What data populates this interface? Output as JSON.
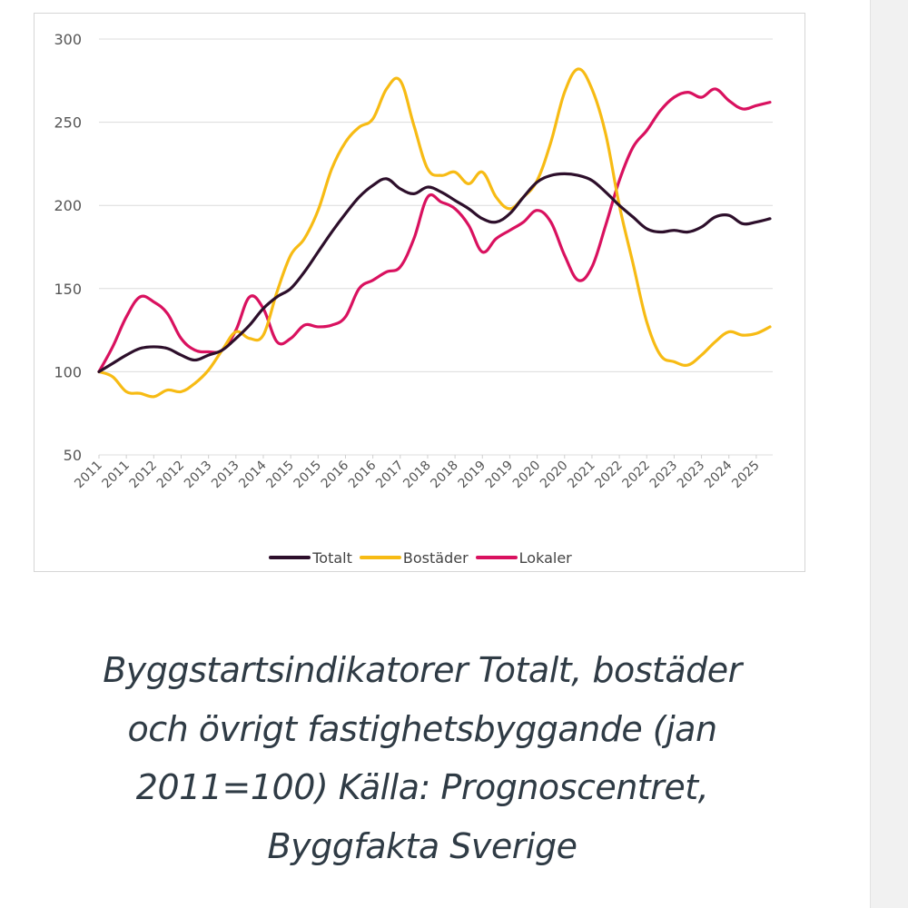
{
  "chart_data": {
    "type": "line",
    "title": "",
    "xlabel": "",
    "ylabel": "",
    "ylim": [
      50,
      300
    ],
    "y_ticks": [
      "300",
      "250",
      "200",
      "150",
      "100",
      "50"
    ],
    "x_tick_labels": [
      "2011",
      "2011",
      "2012",
      "2012",
      "2013",
      "2013",
      "2014",
      "2015",
      "2015",
      "2016",
      "2016",
      "2017",
      "2018",
      "2018",
      "2019",
      "2019",
      "2020",
      "2020",
      "2021",
      "2022",
      "2022",
      "2023",
      "2023",
      "2024",
      "2025"
    ],
    "x_range": [
      0,
      24.6
    ],
    "grid": "horizontal",
    "legend_position": "bottom",
    "series": [
      {
        "name": "Totalt",
        "color": "#2d0f2b",
        "x": [
          0,
          0.5,
          1,
          1.5,
          2,
          2.5,
          3,
          3.5,
          4,
          4.5,
          5,
          5.5,
          6,
          6.5,
          7,
          7.5,
          8,
          8.5,
          9,
          9.5,
          10,
          10.5,
          11,
          11.5,
          12,
          12.5,
          13,
          13.5,
          14,
          14.5,
          15,
          15.5,
          16,
          16.5,
          17,
          17.5,
          18,
          18.5,
          19,
          19.5,
          20,
          20.5,
          21,
          21.5,
          22,
          22.5,
          23,
          23.5,
          24,
          24.5
        ],
        "values": [
          100,
          105,
          110,
          114,
          115,
          114,
          110,
          107,
          110,
          113,
          120,
          128,
          138,
          145,
          150,
          160,
          172,
          184,
          195,
          205,
          212,
          216,
          210,
          207,
          211,
          208,
          203,
          198,
          192,
          190,
          195,
          205,
          214,
          218,
          219,
          218,
          215,
          208,
          200,
          193,
          186,
          184,
          185,
          184,
          187,
          193,
          194,
          189,
          190,
          192
        ]
      },
      {
        "name": "Bostäder",
        "color": "#f7bb14",
        "x": [
          0,
          0.5,
          1,
          1.5,
          2,
          2.5,
          3,
          3.5,
          4,
          4.5,
          5,
          5.5,
          6,
          6.5,
          7,
          7.5,
          8,
          8.5,
          9,
          9.5,
          10,
          10.5,
          11,
          11.5,
          12,
          12.5,
          13,
          13.5,
          14,
          14.5,
          15,
          15.5,
          16,
          16.5,
          17,
          17.5,
          18,
          18.5,
          19,
          19.5,
          20,
          20.5,
          21,
          21.5,
          22,
          22.5,
          23,
          23.5,
          24,
          24.5
        ],
        "values": [
          100,
          97,
          88,
          87,
          85,
          89,
          88,
          93,
          101,
          113,
          124,
          120,
          122,
          148,
          170,
          180,
          197,
          222,
          238,
          247,
          252,
          270,
          275,
          248,
          222,
          218,
          220,
          213,
          220,
          205,
          198,
          205,
          215,
          238,
          268,
          282,
          270,
          243,
          200,
          165,
          130,
          110,
          106,
          104,
          110,
          118,
          124,
          122,
          123,
          127
        ]
      },
      {
        "name": "Lokaler",
        "color": "#d9115f",
        "x": [
          0,
          0.5,
          1,
          1.5,
          2,
          2.5,
          3,
          3.5,
          4,
          4.5,
          5,
          5.5,
          6,
          6.5,
          7,
          7.5,
          8,
          8.5,
          9,
          9.5,
          10,
          10.5,
          11,
          11.5,
          12,
          12.5,
          13,
          13.5,
          14,
          14.5,
          15,
          15.5,
          16,
          16.5,
          17,
          17.5,
          18,
          18.5,
          19,
          19.5,
          20,
          20.5,
          21,
          21.5,
          22,
          22.5,
          23,
          23.5,
          24,
          24.5
        ],
        "values": [
          100,
          115,
          133,
          145,
          142,
          135,
          120,
          113,
          112,
          113,
          125,
          145,
          138,
          118,
          120,
          128,
          127,
          128,
          133,
          150,
          155,
          160,
          163,
          180,
          205,
          202,
          198,
          188,
          172,
          180,
          185,
          190,
          197,
          190,
          170,
          155,
          163,
          188,
          215,
          235,
          245,
          257,
          265,
          268,
          265,
          270,
          263,
          258,
          260,
          262
        ]
      }
    ]
  },
  "caption": {
    "lines": [
      "Byggstartsindikatorer Totalt, bostäder",
      "och övrigt fastighetsbyggande (jan",
      "2011=100) Källa: Prognoscentret,",
      "Byggfakta Sverige"
    ]
  }
}
